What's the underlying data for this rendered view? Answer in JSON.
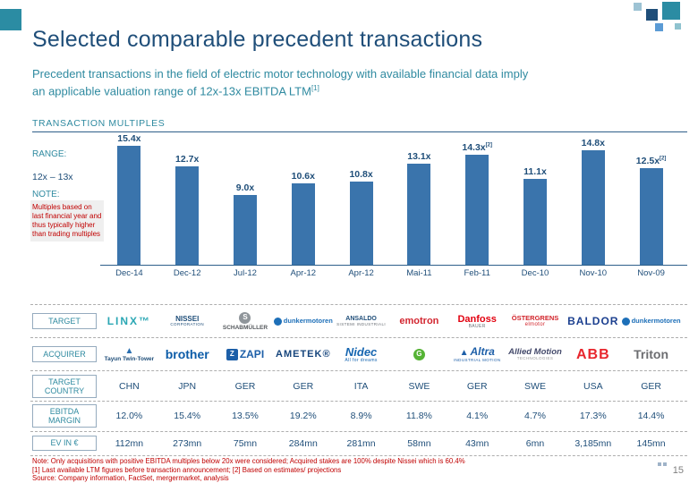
{
  "slide": {
    "title": "Selected comparable precedent transactions",
    "subtitle_line1": "Precedent transactions in the field of electric motor technology with available financial data imply",
    "subtitle_line2": "an applicable valuation range of 12x-13x EBITDA LTM",
    "subtitle_footnote": "[1]",
    "section_header": "TRANSACTION MULTIPLES",
    "page_number": "15"
  },
  "annotations": {
    "range_label": "RANGE:",
    "range_value": "12x – 13x",
    "note_label": "NOTE:",
    "note_text": "Multiples based on last financial year and thus typically higher than trading multiples"
  },
  "chart_data": {
    "type": "bar",
    "title": "TRANSACTION MULTIPLES",
    "categories": [
      "Dec-14",
      "Dec-12",
      "Jul-12",
      "Apr-12",
      "Apr-12",
      "Mai-11",
      "Feb-11",
      "Dec-10",
      "Nov-10",
      "Nov-09"
    ],
    "values": [
      15.4,
      12.7,
      9.0,
      10.6,
      10.8,
      13.1,
      14.3,
      11.1,
      14.8,
      12.5
    ],
    "value_labels": [
      "15.4x",
      "12.7x",
      "9.0x",
      "10.6x",
      "10.8x",
      "13.1x",
      "14.3x",
      "11.1x",
      "14.8x",
      "12.5x"
    ],
    "value_sups": [
      "",
      "",
      "",
      "",
      "",
      "",
      "[2]",
      "",
      "",
      "[2]"
    ],
    "bar_color": "#3a74ac",
    "ylim": [
      0,
      16
    ],
    "grid": false,
    "legend": false,
    "xlabel": "",
    "ylabel": ""
  },
  "table": {
    "row_labels": [
      "TARGET",
      "ACQUIRER",
      "TARGET COUNTRY",
      "EBITDA MARGIN",
      "EV IN €"
    ],
    "targets": [
      {
        "main": "LINX™",
        "color": "#2ba7b4",
        "size": 12,
        "weight": 700,
        "spacing": 2
      },
      {
        "main": "NISSEI",
        "sub": "CORPORATION",
        "color": "#1f4e79",
        "size": 8,
        "weight": 700,
        "sub_color": "#1f4e79",
        "sub_size": 4.5
      },
      {
        "icon": {
          "shape": "circle",
          "bg": "#8f959a",
          "text": "S"
        },
        "main": "SCHABMÜLLER",
        "color": "#55595d",
        "size": 6.5,
        "weight": 700
      },
      {
        "icon": {
          "shape": "dot",
          "bg": "#1d6fb8"
        },
        "row": true,
        "main": "dunkermotoren",
        "color": "#1d6fb8",
        "size": 7.5,
        "weight": 700
      },
      {
        "main": "ANSALDO",
        "sub": "SISTEMI INDUSTRIALI",
        "color": "#1f4e79",
        "size": 7,
        "weight": 700,
        "sub_color": "#6b7076",
        "sub_size": 4.5
      },
      {
        "main": "emotron",
        "color": "#d22630",
        "size": 11,
        "weight": 700
      },
      {
        "main": "Danfoss",
        "sub": "BAUER",
        "color": "#e2000f",
        "size": 11,
        "weight": 800,
        "sub_color": "#6b7076",
        "sub_size": 5
      },
      {
        "main": "ÖSTERGRENS",
        "sub": "elmotor",
        "color": "#d2232a",
        "size": 7.5,
        "weight": 700,
        "sub_color": "#d2232a",
        "sub_size": 6
      },
      {
        "main": "BALDOR",
        "color": "#1b3f8f",
        "size": 12,
        "weight": 800,
        "spacing": 1
      },
      {
        "icon": {
          "shape": "dot",
          "bg": "#1d6fb8"
        },
        "row": true,
        "main": "dunkermotoren",
        "color": "#1d6fb8",
        "size": 7.5,
        "weight": 700
      }
    ],
    "acquirers": [
      {
        "icon": {
          "shape": "mark",
          "text": "▲",
          "fg": "#2a6fb0"
        },
        "main": "Tayun Twin-Tower",
        "color": "#1f4e79",
        "size": 6.5,
        "weight": 700
      },
      {
        "main": "brother",
        "color": "#0c5ca8",
        "size": 14,
        "weight": 800
      },
      {
        "icon": {
          "shape": "square",
          "bg": "#1d5fa8",
          "text": "Z"
        },
        "row": true,
        "main": "ZAPI",
        "color": "#1d5fa8",
        "size": 12,
        "weight": 800
      },
      {
        "main": "AMETEK®",
        "color": "#16457c",
        "size": 11,
        "weight": 800,
        "spacing": 1
      },
      {
        "main": "Nidec",
        "sub": "All for dreams",
        "color": "#1565b0",
        "size": 13,
        "weight": 800,
        "italic": true,
        "sub_color": "#1565b0",
        "sub_size": 5
      },
      {
        "icon": {
          "shape": "circle",
          "bg": "#55b335",
          "text": "G"
        }
      },
      {
        "icon": {
          "shape": "mark",
          "text": "▲",
          "fg": "#1d5fa8"
        },
        "row": true,
        "main": "Altra",
        "sub": "INDUSTRIAL MOTION",
        "color": "#1d5fa8",
        "size": 12,
        "weight": 700,
        "italic": true,
        "sub_color": "#1d5fa8",
        "sub_size": 4.5
      },
      {
        "main": "Allied Motion",
        "sub": "TECHNOLOGIES",
        "color": "#444a6b",
        "size": 9.5,
        "weight": 700,
        "italic": true,
        "sub_color": "#999999",
        "sub_size": 4.5
      },
      {
        "main": "ABB",
        "color": "#e8262d",
        "size": 16,
        "weight": 800,
        "spacing": 1
      },
      {
        "main": "Triton",
        "color": "#6d6e71",
        "size": 14,
        "weight": 600
      }
    ],
    "countries": [
      "CHN",
      "JPN",
      "GER",
      "GER",
      "ITA",
      "SWE",
      "GER",
      "SWE",
      "USA",
      "GER"
    ],
    "ebitda_margins": [
      "12.0%",
      "15.4%",
      "13.5%",
      "19.2%",
      "8.9%",
      "11.8%",
      "4.1%",
      "4.7%",
      "17.3%",
      "14.4%"
    ],
    "ev_values": [
      "112mn",
      "273mn",
      "75mn",
      "284mn",
      "281mn",
      "58mn",
      "43mn",
      "6mn",
      "3,185mn",
      "145mn"
    ]
  },
  "footer": {
    "note_line": "Note: Only acquisitions with positive EBITDA multiples below 20x were considered; Acquired stakes are 100% despite Nissei which is 60.4%",
    "footnote_line": "[1] Last available LTM figures before transaction announcement; [2] Based on estimates/ projections",
    "source_line": "Source: Company information, FactSet, mergermarket, analysis"
  }
}
